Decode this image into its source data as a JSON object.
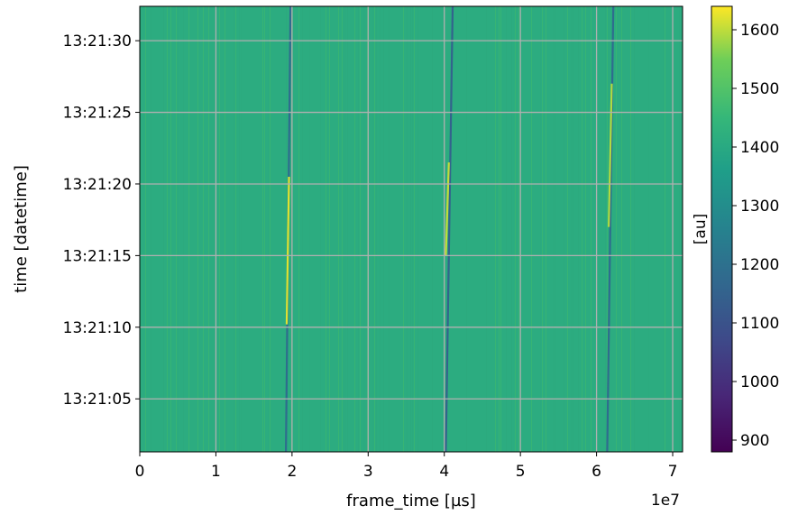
{
  "chart_data": {
    "type": "heatmap",
    "title": "",
    "xlabel": "frame_time [µs]",
    "ylabel": "time [datetime]",
    "x_offset_label": "1e7",
    "x_ticks": [
      0,
      1,
      2,
      3,
      4,
      5,
      6,
      7
    ],
    "x_tick_labels": [
      "0",
      "1",
      "2",
      "3",
      "4",
      "5",
      "6",
      "7"
    ],
    "xlim": [
      0,
      7.13
    ],
    "y_ticks": [
      "13:21:05",
      "13:21:10",
      "13:21:15",
      "13:21:20",
      "13:21:25",
      "13:21:30"
    ],
    "y_tick_labels": [
      "13:21:05",
      "13:21:10",
      "13:21:15",
      "13:21:20",
      "13:21:25",
      "13:21:30"
    ],
    "ylim": [
      "13:21:01.3",
      "13:21:32.4"
    ],
    "grid": true,
    "colorbar": {
      "label": "[au]",
      "colormap": "viridis",
      "range": [
        880,
        1640
      ],
      "ticks": [
        900,
        1000,
        1100,
        1200,
        1300,
        1400,
        1500,
        1600
      ],
      "tick_labels": [
        "900",
        "1000",
        "1100",
        "1200",
        "1300",
        "1400",
        "1500",
        "1600"
      ]
    },
    "background_value": 1410,
    "features": [
      {
        "x": [
          1.92,
          1.98
        ],
        "t": [
          "13:21:01.3",
          "13:21:32.4"
        ],
        "value": 1180
      },
      {
        "x": [
          1.93,
          1.96
        ],
        "t": [
          "13:21:10.2",
          "13:21:20.5"
        ],
        "value": 1620
      },
      {
        "x": [
          4.02,
          4.11
        ],
        "t": [
          "13:21:01.3",
          "13:21:32.4"
        ],
        "value": 1150
      },
      {
        "x": [
          4.02,
          4.06
        ],
        "t": [
          "13:21:15.0",
          "13:21:21.5"
        ],
        "value": 1600
      },
      {
        "x": [
          6.14,
          6.22
        ],
        "t": [
          "13:21:01.3",
          "13:21:32.4"
        ],
        "value": 1180
      },
      {
        "x": [
          6.16,
          6.2
        ],
        "t": [
          "13:21:17.0",
          "13:21:27.0"
        ],
        "value": 1590
      }
    ]
  }
}
